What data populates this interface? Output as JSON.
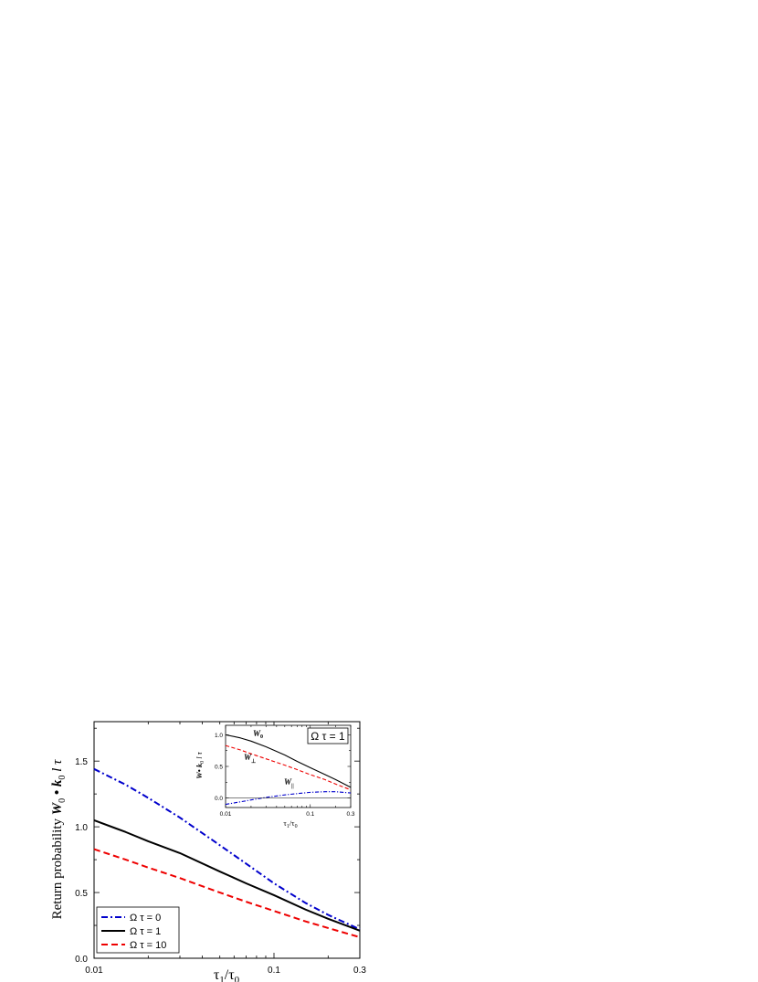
{
  "chart_data": [
    {
      "type": "line",
      "xscale": "log",
      "xlim": [
        0.01,
        0.3
      ],
      "ylim": [
        0,
        1.8
      ],
      "xticks": [
        {
          "v": 0.01,
          "label": "0.01"
        },
        {
          "v": 0.1,
          "label": "0.1"
        },
        {
          "v": 0.3,
          "label": "0.3"
        }
      ],
      "yticks": [
        {
          "v": 0,
          "label": "0.0"
        },
        {
          "v": 0.5,
          "label": "0.5"
        },
        {
          "v": 1.0,
          "label": "1.0"
        },
        {
          "v": 1.5,
          "label": "1.5"
        }
      ],
      "xlabel": {
        "main": "τ",
        "sub1": "1",
        "slash": "/τ",
        "sub2": "0"
      },
      "ylabel": {
        "pre": "Return probability ",
        "W": "W",
        "sub": "0",
        "mid": " • k",
        "sub2": "0",
        "post": " l τ"
      },
      "legend": {
        "position": "bottom-left"
      },
      "series": [
        {
          "name": "Ω τ = 0",
          "color": "#0000cc",
          "style": "dash-dot",
          "x": [
            0.01,
            0.015,
            0.02,
            0.03,
            0.05,
            0.07,
            0.1,
            0.15,
            0.2,
            0.3
          ],
          "y": [
            1.44,
            1.32,
            1.22,
            1.07,
            0.86,
            0.72,
            0.57,
            0.42,
            0.33,
            0.22
          ]
        },
        {
          "name": "Ω τ = 1",
          "color": "#000000",
          "style": "solid",
          "x": [
            0.01,
            0.015,
            0.02,
            0.03,
            0.05,
            0.07,
            0.1,
            0.15,
            0.2,
            0.3
          ],
          "y": [
            1.05,
            0.96,
            0.89,
            0.8,
            0.66,
            0.57,
            0.48,
            0.37,
            0.3,
            0.21
          ]
        },
        {
          "name": "Ω τ = 10",
          "color": "#ee0000",
          "style": "dashed",
          "x": [
            0.01,
            0.015,
            0.02,
            0.03,
            0.05,
            0.07,
            0.1,
            0.15,
            0.2,
            0.3
          ],
          "y": [
            0.83,
            0.75,
            0.69,
            0.61,
            0.5,
            0.43,
            0.36,
            0.28,
            0.23,
            0.16
          ]
        }
      ]
    },
    {
      "type": "line",
      "role": "inset",
      "xscale": "log",
      "xlim": [
        0.01,
        0.3
      ],
      "ylim": [
        -0.15,
        1.15
      ],
      "xticks": [
        {
          "v": 0.01,
          "label": "0.01"
        },
        {
          "v": 0.1,
          "label": "0.1"
        },
        {
          "v": 0.3,
          "label": "0.3"
        }
      ],
      "yticks": [
        {
          "v": 0,
          "label": "0.0"
        },
        {
          "v": 0.5,
          "label": "0.5"
        },
        {
          "v": 1.0,
          "label": "1.0"
        }
      ],
      "xlabel": {
        "main": "τ",
        "sub1": "1",
        "slash": "/τ",
        "sub2": "0"
      },
      "ylabel": {
        "W": "W",
        "mid": "• k",
        "sub": "0",
        "post": " l τ"
      },
      "annotation": "Ω τ = 1",
      "series": [
        {
          "name": "W",
          "sub": "0",
          "color": "#000000",
          "style": "solid",
          "x": [
            0.01,
            0.015,
            0.02,
            0.03,
            0.05,
            0.07,
            0.1,
            0.15,
            0.2,
            0.3
          ],
          "y": [
            1.0,
            0.95,
            0.9,
            0.81,
            0.68,
            0.58,
            0.48,
            0.37,
            0.29,
            0.17
          ]
        },
        {
          "name": "W",
          "sub": "⊥",
          "color": "#ee0000",
          "style": "dashed",
          "x": [
            0.01,
            0.015,
            0.02,
            0.03,
            0.05,
            0.07,
            0.1,
            0.15,
            0.2,
            0.3
          ],
          "y": [
            0.83,
            0.76,
            0.7,
            0.62,
            0.52,
            0.45,
            0.37,
            0.29,
            0.22,
            0.13
          ]
        },
        {
          "name": "W",
          "sub": "||",
          "color": "#0000cc",
          "style": "dash-dot",
          "x": [
            0.01,
            0.015,
            0.02,
            0.03,
            0.05,
            0.07,
            0.1,
            0.15,
            0.2,
            0.3
          ],
          "y": [
            -0.1,
            -0.06,
            -0.03,
            0.01,
            0.05,
            0.07,
            0.09,
            0.1,
            0.1,
            0.08
          ]
        },
        {
          "name": "",
          "color": "#000000",
          "style": "solid",
          "role": "baseline",
          "x": [
            0.01,
            0.3
          ],
          "y": [
            0,
            0
          ]
        }
      ]
    }
  ]
}
